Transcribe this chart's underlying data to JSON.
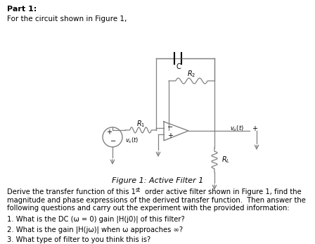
{
  "title": "Part 1:",
  "line1": "For the circuit shown in Figure 1,",
  "figure_caption": "Figure 1: Active Filter 1",
  "paragraph1": "Derive the transfer function of this 1",
  "paragraph1b": "st",
  "paragraph1c": " order active filter shown in Figure 1, find the",
  "paragraph2": "magnitude and phase expressions of the derived transfer function.  Then answer the",
  "paragraph3": "following questions and carry out the experiment with the provided information:",
  "q1": "1. What is the DC (ω = 0) gain |H(j0)| of this filter?",
  "q2": "2. What is the gain |H(jω)| when ω approaches ∞?",
  "q3": "3. What type of filter to you think this is?",
  "bg_color": "#ffffff",
  "text_color": "#000000",
  "circuit_color": "#808080"
}
